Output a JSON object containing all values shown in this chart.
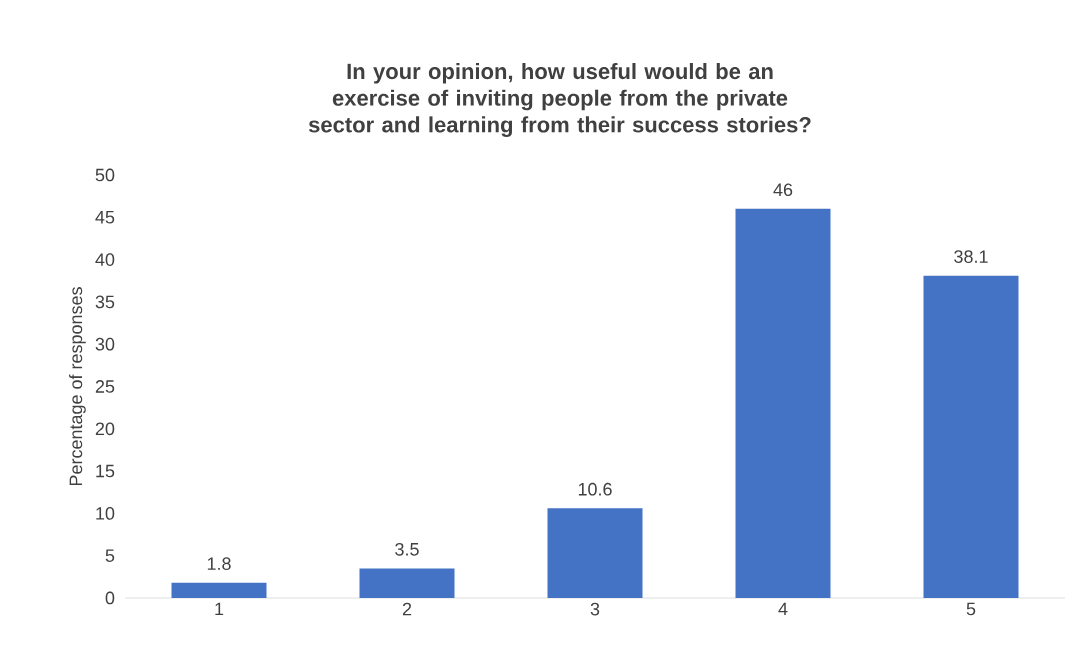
{
  "chart_data": {
    "type": "bar",
    "title": "In your opinion, how useful would be an exercise of inviting people from the private sector and learning from their success stories?",
    "ylabel": "Percentage of responses",
    "categories": [
      "1",
      "2",
      "3",
      "4",
      "5"
    ],
    "values": [
      1.8,
      3.5,
      10.6,
      46,
      38.1
    ],
    "color": "#4472c4",
    "ylim": [
      0,
      50
    ],
    "yticks": [
      0,
      5,
      10,
      15,
      20,
      25,
      30,
      35,
      40,
      45,
      50
    ],
    "data_labels": true
  }
}
